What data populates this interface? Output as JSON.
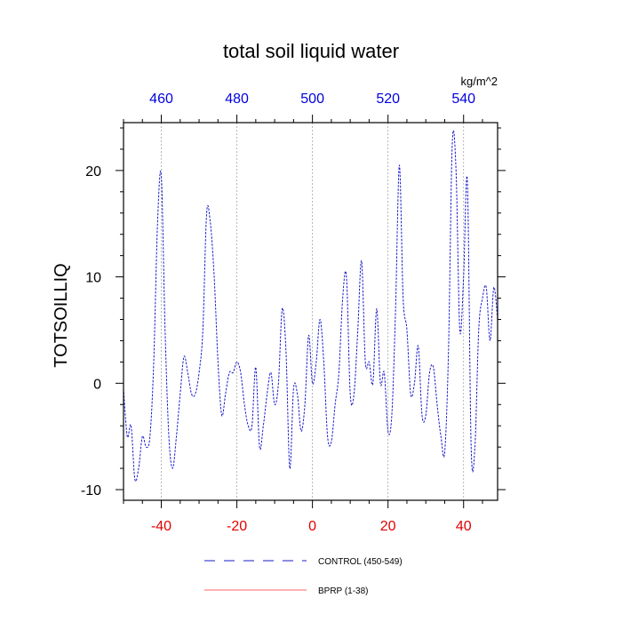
{
  "chart_data": {
    "type": "line",
    "title": "total soil liquid water",
    "ylabel": "TOTSOILLIQ",
    "xlabel": "",
    "top_axis_units": "kg/m^2",
    "xlim": [
      -50,
      49
    ],
    "ylim": [
      -11,
      24.5
    ],
    "bottom_ticks": [
      -40,
      -20,
      0,
      20,
      40
    ],
    "bottom_tick_labels": [
      "-40",
      "-20",
      "0",
      "20",
      "40"
    ],
    "top_ticks": [
      -40,
      -20,
      0,
      20,
      40
    ],
    "top_tick_labels": [
      "460",
      "480",
      "500",
      "520",
      "540"
    ],
    "y_ticks": [
      -10,
      0,
      10,
      20
    ],
    "y_tick_labels": [
      "-10",
      "0",
      "10",
      "20"
    ],
    "vertical_gridlines_at": [
      -40,
      -20,
      0,
      20,
      40
    ],
    "colors": {
      "control": "#1a1acc",
      "bprp": "#ff6666",
      "bottom_ticks": "#e00000",
      "top_ticks": "#0000e0"
    },
    "series": [
      {
        "name": "CONTROL (450-549)",
        "style": "dashed",
        "x": [
          -50,
          -49,
          -48,
          -47,
          -46,
          -45,
          -44,
          -43,
          -42,
          -41,
          -40,
          -39,
          -38,
          -37,
          -36,
          -35,
          -34,
          -33,
          -32,
          -31,
          -30,
          -29,
          -28,
          -27,
          -26,
          -25,
          -24,
          -23,
          -22,
          -21,
          -20,
          -19,
          -18,
          -17,
          -16,
          -15,
          -14,
          -13,
          -12,
          -11,
          -10,
          -9,
          -8,
          -7,
          -6,
          -5,
          -4,
          -3,
          -2,
          -1,
          0,
          1,
          2,
          3,
          4,
          5,
          6,
          7,
          8,
          9,
          10,
          11,
          12,
          13,
          14,
          15,
          16,
          17,
          18,
          19,
          20,
          21,
          22,
          23,
          24,
          25,
          26,
          27,
          28,
          29,
          30,
          31,
          32,
          33,
          34,
          35,
          36,
          37,
          38,
          39,
          40,
          41,
          42,
          43,
          44,
          45,
          46,
          47,
          48,
          49
        ],
        "values": [
          -0.5,
          -5,
          -4,
          -9,
          -8,
          -5,
          -6,
          -5,
          2,
          15,
          19.5,
          5,
          -5,
          -8,
          -5,
          -1,
          2.5,
          1,
          -1,
          -1,
          1,
          5,
          16,
          15,
          10,
          2,
          -3,
          -1,
          1,
          1,
          2,
          1,
          -2,
          -4,
          -4,
          1.5,
          -6,
          -4,
          -1,
          1,
          -2,
          0,
          7,
          3,
          -8,
          -0.5,
          -1,
          -4.5,
          -2,
          4.5,
          0,
          2,
          6,
          2,
          -5,
          -5.5,
          -2,
          1,
          8,
          10,
          -1,
          -1,
          5,
          11.5,
          2,
          2,
          0,
          7,
          0,
          1,
          -4.5,
          -3,
          7,
          20.5,
          8,
          5,
          -1,
          0,
          3.5,
          -3,
          -3,
          1,
          1.5,
          -2,
          -5,
          -6.5,
          3,
          22.5,
          20,
          5,
          10,
          19,
          -6,
          -6,
          5,
          8,
          9,
          4,
          9,
          6
        ]
      },
      {
        "name": "BPRP (1-38)",
        "style": "solid",
        "x": [],
        "values": []
      }
    ],
    "legend": [
      {
        "label": "CONTROL (450-549)",
        "style": "dashed"
      },
      {
        "label": "BPRP (1-38)",
        "style": "solid"
      }
    ]
  }
}
